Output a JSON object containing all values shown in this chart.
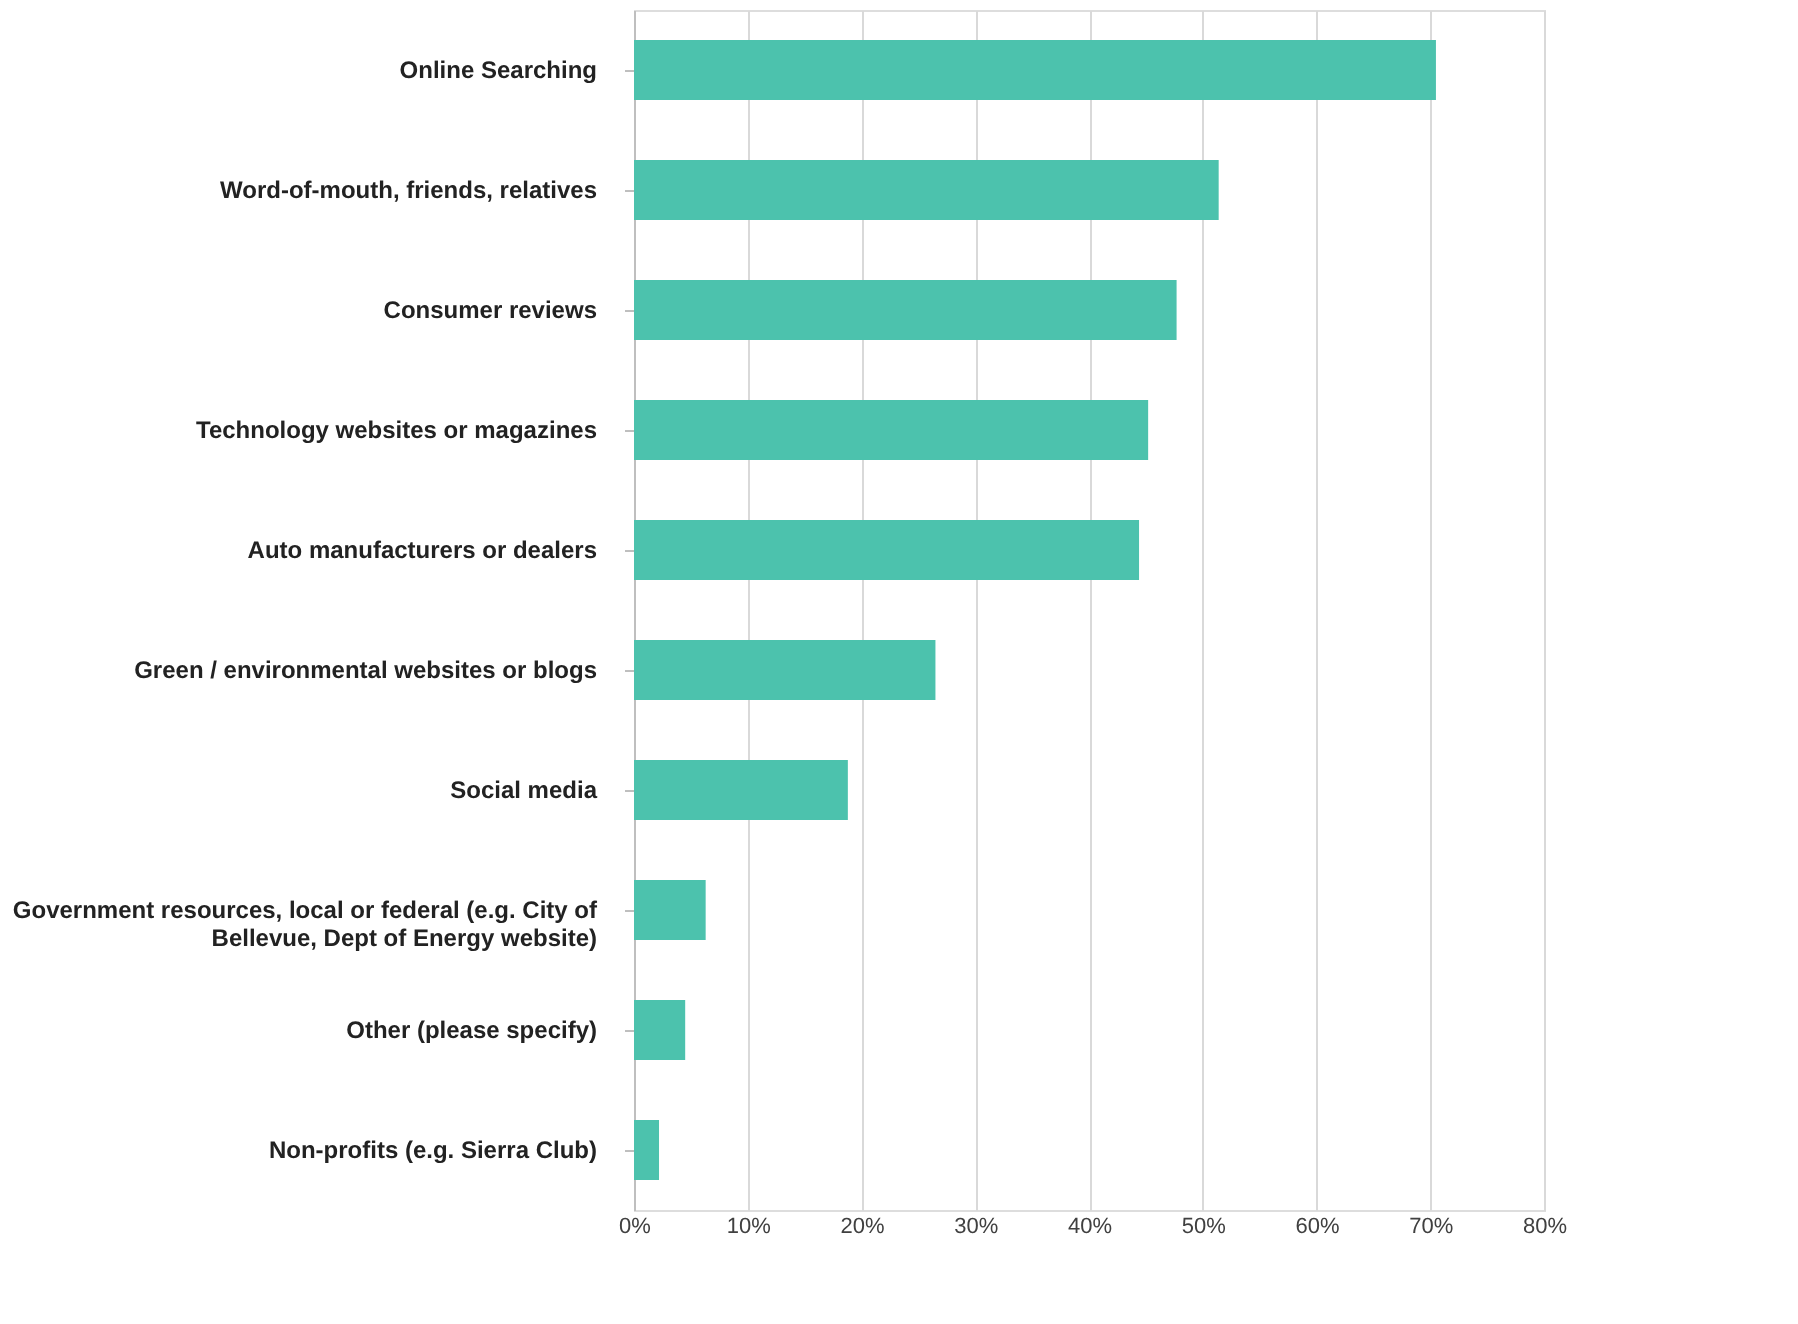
{
  "chart_data": {
    "type": "bar",
    "orientation": "horizontal",
    "categories": [
      "Online Searching",
      "Word-of-mouth, friends, relatives",
      "Consumer reviews",
      "Technology websites or magazines",
      "Auto manufacturers or dealers",
      "Green / environmental websites or blogs",
      "Social media",
      "Government resources, local or federal (e.g. City of Bellevue, Dept of Energy website)",
      "Other (please specify)",
      "Non-profits (e.g. Sierra Club)"
    ],
    "values": [
      70.5,
      51.4,
      47.7,
      45.2,
      44.4,
      26.5,
      18.8,
      6.3,
      4.5,
      2.2
    ],
    "color": "#4cc2ad",
    "xlim": [
      0,
      80
    ],
    "xticks": [
      {
        "value": 0,
        "label": "0%"
      },
      {
        "value": 10,
        "label": "10%"
      },
      {
        "value": 20,
        "label": "20%"
      },
      {
        "value": 30,
        "label": "30%"
      },
      {
        "value": 40,
        "label": "40%"
      },
      {
        "value": 50,
        "label": "50%"
      },
      {
        "value": 60,
        "label": "60%"
      },
      {
        "value": 70,
        "label": "70%"
      },
      {
        "value": 80,
        "label": "80%"
      }
    ],
    "grid": "x"
  }
}
